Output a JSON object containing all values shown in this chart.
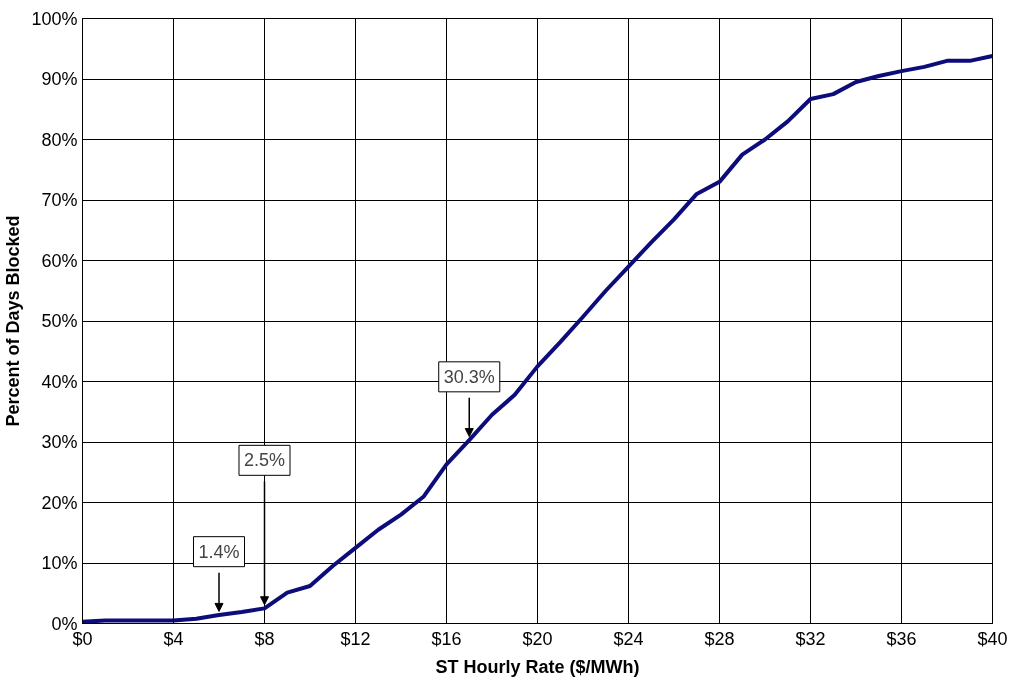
{
  "chart_data": {
    "type": "line",
    "xlabel": "ST Hourly Rate ($/MWh)",
    "ylabel": "Percent of Days Blocked",
    "x": [
      0,
      1,
      2,
      3,
      4,
      5,
      6,
      7,
      8,
      9,
      10,
      11,
      12,
      13,
      14,
      15,
      16,
      17,
      18,
      19,
      20,
      21,
      22,
      23,
      24,
      25,
      26,
      27,
      28,
      29,
      30,
      31,
      32,
      33,
      34,
      35,
      36,
      37,
      38,
      39,
      40
    ],
    "series": [
      {
        "color": "#0c0c7a",
        "values": [
          0.3,
          0.5,
          0.5,
          0.5,
          0.5,
          0.8,
          1.4,
          1.9,
          2.5,
          5.1,
          6.2,
          9.5,
          12.5,
          15.5,
          18,
          21,
          26.3,
          30.3,
          34.5,
          37.8,
          42.5,
          46.5,
          50.7,
          55,
          59,
          63,
          66.8,
          71,
          73,
          77.5,
          80,
          83,
          86.7,
          87.5,
          89.5,
          90.5,
          91.3,
          92,
          93,
          93,
          93.8
        ]
      }
    ],
    "xlim": [
      0,
      40
    ],
    "ylim": [
      0,
      100
    ],
    "xticks": [
      {
        "value": 0,
        "label": "$0"
      },
      {
        "value": 4,
        "label": "$4"
      },
      {
        "value": 8,
        "label": "$8"
      },
      {
        "value": 12,
        "label": "$12"
      },
      {
        "value": 16,
        "label": "$16"
      },
      {
        "value": 20,
        "label": "$20"
      },
      {
        "value": 24,
        "label": "$24"
      },
      {
        "value": 28,
        "label": "$28"
      },
      {
        "value": 32,
        "label": "$32"
      },
      {
        "value": 36,
        "label": "$36"
      },
      {
        "value": 40,
        "label": "$40"
      }
    ],
    "yticks": [
      {
        "value": 0,
        "label": "0%"
      },
      {
        "value": 10,
        "label": "10%"
      },
      {
        "value": 20,
        "label": "20%"
      },
      {
        "value": 30,
        "label": "30%"
      },
      {
        "value": 40,
        "label": "40%"
      },
      {
        "value": 50,
        "label": "50%"
      },
      {
        "value": 60,
        "label": "60%"
      },
      {
        "value": 70,
        "label": "70%"
      },
      {
        "value": 80,
        "label": "80%"
      },
      {
        "value": 90,
        "label": "90%"
      },
      {
        "value": 100,
        "label": "100%"
      }
    ],
    "annotations": [
      {
        "text": "1.4%",
        "x": 6,
        "y": 1.4
      },
      {
        "text": "2.5%",
        "x": 8,
        "y": 2.5
      },
      {
        "text": "30.3%",
        "x": 17,
        "y": 30.3
      }
    ],
    "grid": true,
    "marker": "none",
    "line_style": "solid"
  }
}
